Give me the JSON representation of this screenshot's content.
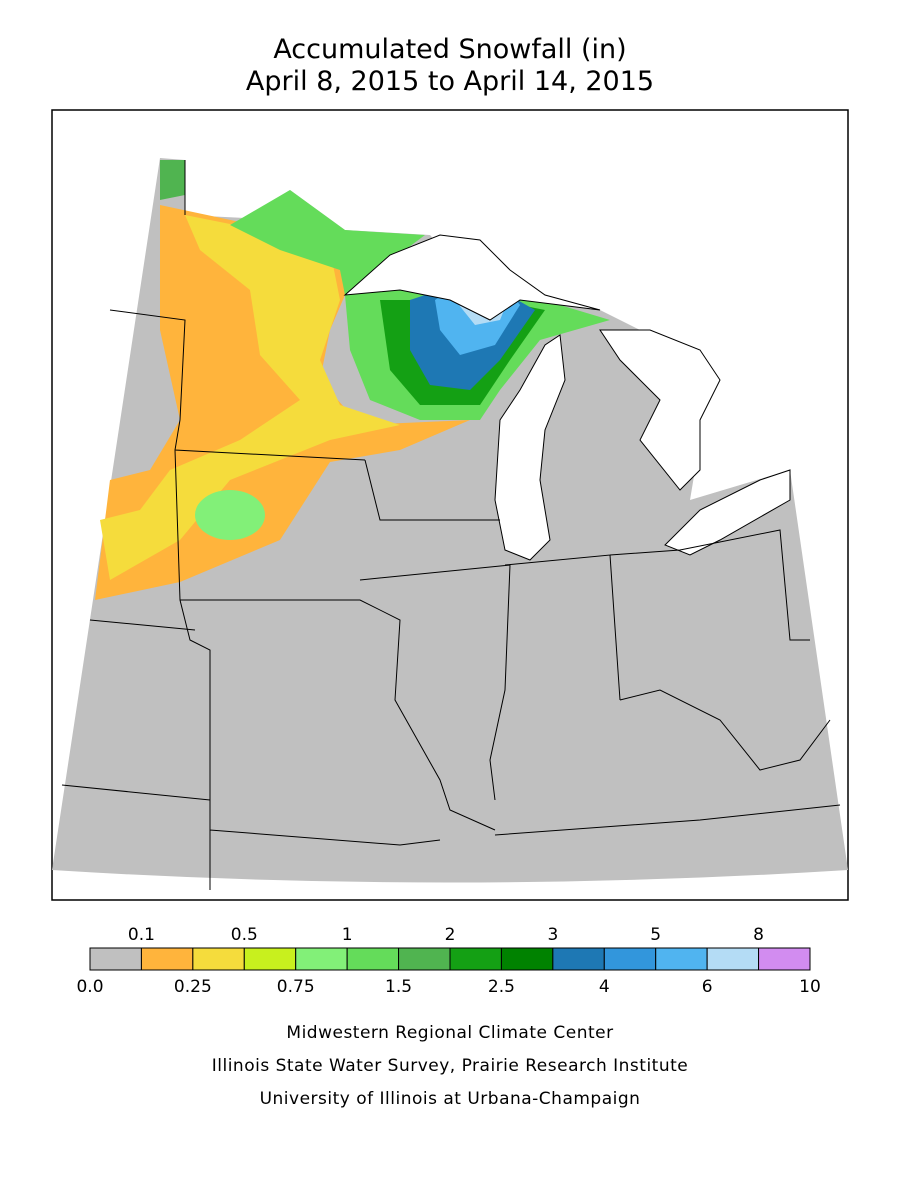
{
  "header": {
    "title": "Accumulated Snowfall (in)",
    "subtitle": "April 8, 2015 to April 14, 2015"
  },
  "legend": {
    "colors": [
      "#c0c0c0",
      "#ffb43c",
      "#f5dc3c",
      "#c8f01e",
      "#82f078",
      "#64dc5a",
      "#50b450",
      "#14a014",
      "#008200",
      "#1e78b4",
      "#3296dc",
      "#50b4f0",
      "#b4dcf5",
      "#d28cf0"
    ],
    "boundary_labels": [
      "0.0",
      "0.1",
      "0.25",
      "0.5",
      "0.75",
      "1",
      "1.5",
      "2",
      "2.5",
      "3",
      "4",
      "5",
      "6",
      "8",
      "10"
    ]
  },
  "footer": {
    "lines": [
      "Midwestern Regional Climate Center",
      "Illinois State Water Survey, Prairie Research Institute",
      "University of Illinois at Urbana-Champaign"
    ]
  }
}
